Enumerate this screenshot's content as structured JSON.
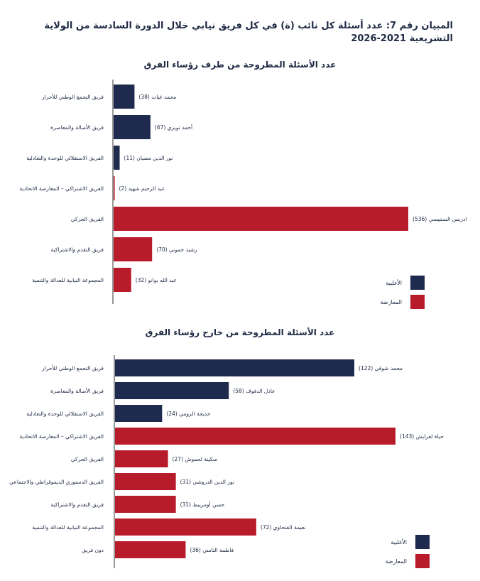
{
  "title": "المبيان رقم 7: عدد أسئلة كل نائب (ة) في كل فريق نيابي خلال الدورة السادسة من الولاية التشريعية 2021-2026",
  "colors": {
    "majority": "#1f2a4f",
    "opposition": "#b81c2b"
  },
  "legend": {
    "majority": "الأغلبية",
    "opposition": "المعارضة"
  },
  "chart_data": [
    {
      "type": "bar",
      "orientation": "horizontal",
      "title": "عدد الأسئلة المطروحة من طرف رؤساء الفرق",
      "categories": [
        "فريق التجمع الوطني للأحرار",
        "فريق الأصالة والمعاصرة",
        "الفريق الاستقلالي للوحدة والتعادلية",
        "الفريق الاشتراكي – المعارضة الاتحادية",
        "الفريق الحركي",
        "فريق التقدم والاشتراكية",
        "المجموعة النيابية للعدالة والتنمية"
      ],
      "labels": [
        "(محمد غيات (38",
        "(أحمد تويزي (67",
        "(نور الدين مضيان (11",
        "(عبد الرحيم شهيد (2",
        "(ادريس السنتيسي (536",
        "(رشيد حموني (70",
        "(عبد الله بوانو (32"
      ],
      "values": [
        38,
        67,
        11,
        2,
        536,
        70,
        32
      ],
      "groups": [
        "majority",
        "majority",
        "majority",
        "opposition",
        "opposition",
        "opposition",
        "opposition"
      ]
    },
    {
      "type": "bar",
      "orientation": "horizontal",
      "title": "عدد الأسئلة المطروحة من خارج رؤساء الفرق",
      "categories": [
        "فريق التجمع الوطني للأحرار",
        "فريق الأصالة والمعاصرة",
        "الفريق الاستقلالي للوحدة والتعادلية",
        "الفريق الاشتراكي – المعارضة الاتحادية",
        "الفريق الحركي",
        "الفريق الدستوري الديموقراطي والاجتماعي",
        "فريق التقدم والاشتراكية",
        "المجموعة النيابية للعدالة والتنمية",
        "دون فريق"
      ],
      "labels": [
        "(محمد شوقي (122",
        "(عادل الدفوف (58",
        "(خديجة الزومي (24",
        "(حياة لعرايش (143",
        "(سكينة لحموش (27",
        "(نور الدين الدروشي (31",
        "(حسن أومريبط (31",
        "(نعيمة الفتحاوي (72",
        "(فاطمة التامني (36"
      ],
      "values": [
        122,
        58,
        24,
        143,
        27,
        31,
        31,
        72,
        36
      ],
      "groups": [
        "majority",
        "majority",
        "majority",
        "opposition",
        "opposition",
        "opposition",
        "opposition",
        "opposition",
        "opposition"
      ]
    }
  ]
}
